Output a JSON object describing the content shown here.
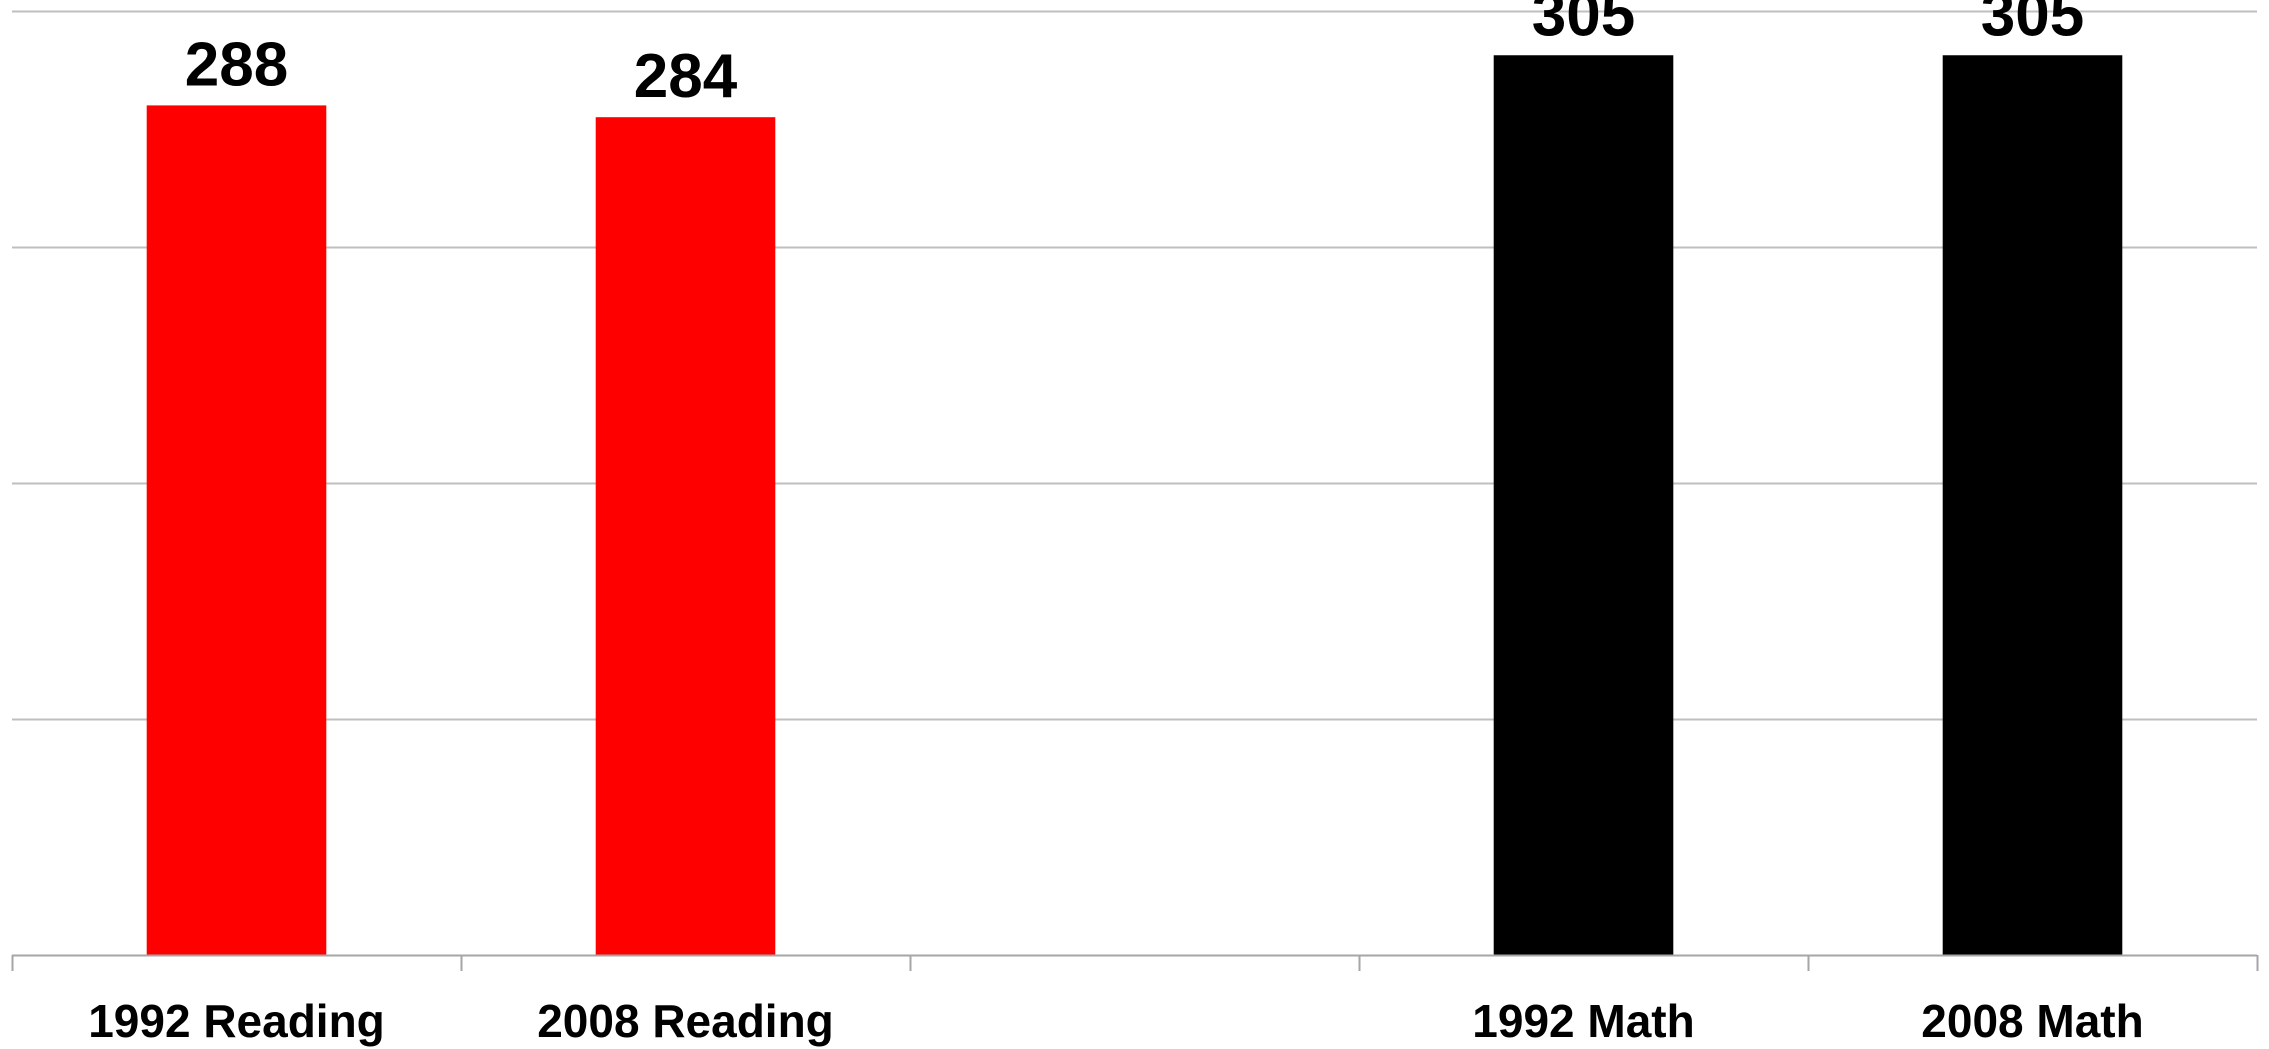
{
  "chart_data": {
    "type": "bar",
    "title": "",
    "xlabel": "",
    "ylabel": "",
    "categories": [
      "1992 Reading",
      "2008 Reading",
      "",
      "1992 Math",
      "2008 Math"
    ],
    "values": [
      288,
      284,
      null,
      305,
      305
    ],
    "data_labels": [
      "288",
      "284",
      "",
      "305",
      "305"
    ],
    "bar_colors": [
      "#FF0000",
      "#FF0000",
      null,
      "#000000",
      "#000000"
    ],
    "ylim": [
      0,
      320
    ],
    "grid": true,
    "legend": "none",
    "colors": {
      "reading": "#FF0000",
      "math": "#000000",
      "gridline": "#BFBFBF",
      "axis": "#A6A6A6"
    }
  }
}
